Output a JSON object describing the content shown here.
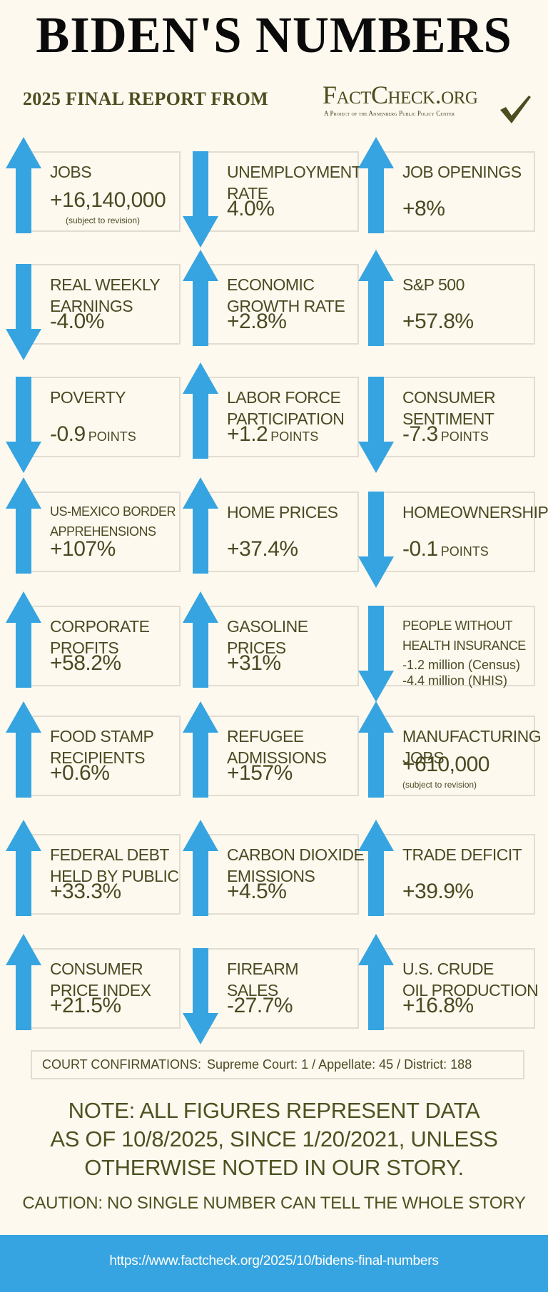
{
  "header": {
    "title": "BIDEN'S NUMBERS",
    "subtitle": "2025 FINAL REPORT FROM",
    "logo": {
      "name": "FactCheck.org",
      "tagline": "A Project of the Annenberg Public Policy Center",
      "icon": "checkmark-icon"
    }
  },
  "colors": {
    "arrow": "#36a4e0",
    "text": "#4a4a22",
    "background": "#fdf9ef",
    "box_border": "#e1ddd2",
    "footer": "#36a4e0"
  },
  "cards": [
    {
      "label": [
        "JOBS"
      ],
      "value": "+16,140,000",
      "note": "(subject to revision)",
      "direction": "up"
    },
    {
      "label": [
        "UNEMPLOYMENT",
        "RATE"
      ],
      "value": "4.0%",
      "direction": "down"
    },
    {
      "label": [
        "JOB OPENINGS"
      ],
      "value": "+8%",
      "direction": "up"
    },
    {
      "label": [
        "REAL WEEKLY",
        "EARNINGS"
      ],
      "value": "-4.0%",
      "direction": "down"
    },
    {
      "label": [
        "ECONOMIC",
        "GROWTH RATE"
      ],
      "value": "+2.8%",
      "direction": "up"
    },
    {
      "label": [
        "S&P 500"
      ],
      "value": "+57.8%",
      "direction": "up"
    },
    {
      "label": [
        "POVERTY"
      ],
      "value": "-0.9",
      "unit": "POINTS",
      "direction": "down"
    },
    {
      "label": [
        "LABOR FORCE",
        "PARTICIPATION"
      ],
      "value": "+1.2",
      "unit": "POINTS",
      "direction": "up"
    },
    {
      "label": [
        "CONSUMER",
        "SENTIMENT"
      ],
      "value": "-7.3",
      "unit": "POINTS",
      "direction": "down"
    },
    {
      "label": [
        "US-MEXICO BORDER",
        "APPREHENSIONS"
      ],
      "value": "+107%",
      "direction": "up"
    },
    {
      "label": [
        "HOME PRICES"
      ],
      "value": "+37.4%",
      "direction": "up"
    },
    {
      "label": [
        "HOMEOWNERSHIP"
      ],
      "value": "-0.1",
      "unit": "POINTS",
      "direction": "down"
    },
    {
      "label": [
        "CORPORATE",
        "PROFITS"
      ],
      "value": "+58.2%",
      "direction": "up"
    },
    {
      "label": [
        "GASOLINE",
        "PRICES"
      ],
      "value": "+31%",
      "direction": "up"
    },
    {
      "label": [
        "PEOPLE WITHOUT",
        "HEALTH INSURANCE"
      ],
      "values": [
        "-1.2 million (Census)",
        "-4.4 million (NHIS)"
      ],
      "direction": "down"
    },
    {
      "label": [
        "FOOD STAMP",
        "RECIPIENTS"
      ],
      "value": "+0.6%",
      "direction": "up"
    },
    {
      "label": [
        "REFUGEE",
        "ADMISSIONS"
      ],
      "value": "+157%",
      "direction": "up"
    },
    {
      "label": [
        "MANUFACTURING",
        "JOBS"
      ],
      "value": "+610,000",
      "note": "(subject to revision)",
      "direction": "up"
    },
    {
      "label": [
        "FEDERAL DEBT",
        "HELD BY PUBLIC"
      ],
      "value": "+33.3%",
      "direction": "up"
    },
    {
      "label": [
        "CARBON DIOXIDE",
        "EMISSIONS"
      ],
      "value": "+4.5%",
      "direction": "up"
    },
    {
      "label": [
        "TRADE DEFICIT"
      ],
      "value": "+39.9%",
      "direction": "up"
    },
    {
      "label": [
        "CONSUMER",
        "PRICE INDEX"
      ],
      "value": "+21.5%",
      "direction": "up"
    },
    {
      "label": [
        "FIREARM",
        "SALES"
      ],
      "value": "-27.7%",
      "direction": "down"
    },
    {
      "label": [
        "U.S. CRUDE",
        "OIL PRODUCTION"
      ],
      "value": "+16.8%",
      "direction": "up"
    }
  ],
  "court": {
    "label": "COURT CONFIRMATIONS:",
    "detail": "Supreme Court: 1 / Appellate: 45 / District: 188"
  },
  "note": {
    "lines": [
      "NOTE: ALL FIGURES REPRESENT DATA",
      "AS OF 10/8/2025, SINCE 1/20/2021, UNLESS",
      "OTHERWISE NOTED IN OUR STORY."
    ]
  },
  "caution": "CAUTION: NO SINGLE NUMBER CAN TELL THE WHOLE STORY",
  "footer": {
    "url": "https://www.factcheck.org/2025/10/bidens-final-numbers"
  }
}
